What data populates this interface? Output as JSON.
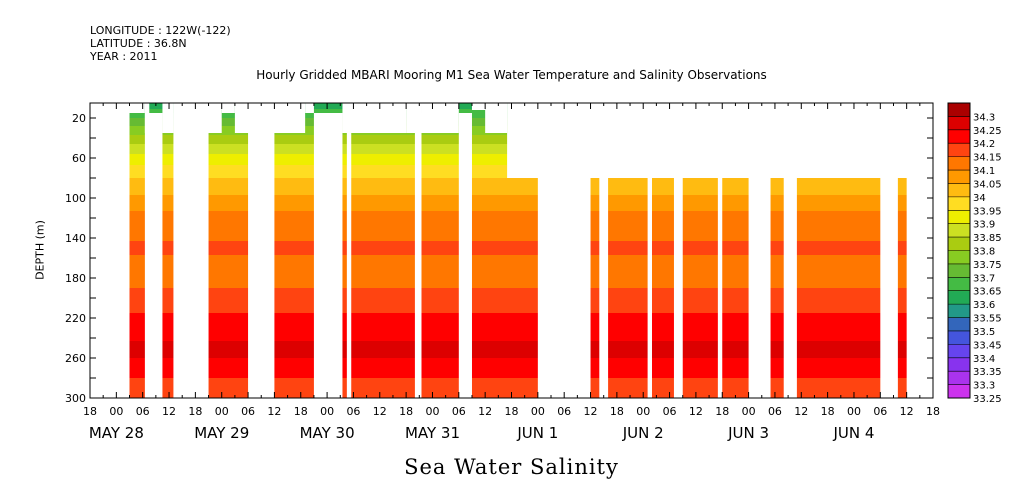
{
  "header": {
    "longitude": "LONGITUDE : 122W(-122)",
    "latitude": "LATITUDE : 36.8N",
    "year": "YEAR : 2011"
  },
  "chart_data": {
    "type": "heatmap",
    "title": "Hourly Gridded MBARI Mooring M1 Sea Water Temperature and Salinity Observations",
    "xlabel": "Sea Water Salinity",
    "ylabel": "DEPTH (m)",
    "x_hour_ticks": [
      "18",
      "00",
      "06",
      "12",
      "18",
      "00",
      "06",
      "12",
      "18",
      "00",
      "06",
      "12",
      "18",
      "00",
      "06",
      "12",
      "18",
      "00",
      "06",
      "12",
      "18",
      "00",
      "06",
      "12",
      "18",
      "00",
      "06",
      "12",
      "18",
      "00",
      "06",
      "12",
      "18"
    ],
    "date_labels": [
      "MAY 28",
      "MAY 29",
      "MAY 30",
      "MAY 31",
      "JUN  1",
      "JUN  2",
      "JUN  3",
      "JUN  4"
    ],
    "x_range_hours": [
      -6,
      186
    ],
    "y_ticks": [
      20,
      60,
      100,
      140,
      180,
      220,
      260,
      300
    ],
    "ylim": [
      300,
      5
    ],
    "colorbar": {
      "levels": [
        33.25,
        33.3,
        33.35,
        33.4,
        33.45,
        33.5,
        33.55,
        33.6,
        33.65,
        33.7,
        33.75,
        33.8,
        33.85,
        33.9,
        33.95,
        34,
        34.05,
        34.1,
        34.15,
        34.2,
        34.25,
        34.3
      ],
      "colors": [
        "#cc33ee",
        "#aa33ee",
        "#8833ee",
        "#6644ee",
        "#4455dd",
        "#3366bb",
        "#229988",
        "#22aa55",
        "#44bb44",
        "#66bb33",
        "#88cc22",
        "#aacc11",
        "#cce022",
        "#eeee00",
        "#ffdd22",
        "#ffbb11",
        "#ff9900",
        "#ff7700",
        "#ff4411",
        "#ff0000",
        "#dd0000",
        "#aa0000"
      ]
    },
    "salinity_profile": [
      {
        "depth": 5,
        "salinity": 33.62
      },
      {
        "depth": 20,
        "salinity": 33.7
      },
      {
        "depth": 40,
        "salinity": 33.82
      },
      {
        "depth": 60,
        "salinity": 33.92
      },
      {
        "depth": 80,
        "salinity": 34.0
      },
      {
        "depth": 100,
        "salinity": 34.06
      },
      {
        "depth": 120,
        "salinity": 34.12
      },
      {
        "depth": 140,
        "salinity": 34.14
      },
      {
        "depth": 150,
        "salinity": 34.17
      },
      {
        "depth": 160,
        "salinity": 34.14
      },
      {
        "depth": 180,
        "salinity": 34.14
      },
      {
        "depth": 200,
        "salinity": 34.16
      },
      {
        "depth": 215,
        "salinity": 34.2
      },
      {
        "depth": 240,
        "salinity": 34.24
      },
      {
        "depth": 250,
        "salinity": 34.27
      },
      {
        "depth": 265,
        "salinity": 34.24
      },
      {
        "depth": 280,
        "salinity": 34.2
      },
      {
        "depth": 300,
        "salinity": 34.19
      }
    ],
    "data_start_hour": 3,
    "missing_intervals": [
      {
        "from_hour": 6.5,
        "to_hour": 10.5,
        "min_depth": 15
      },
      {
        "from_hour": 13,
        "to_hour": 21,
        "min_depth": 15
      },
      {
        "from_hour": 30,
        "to_hour": 36,
        "min_depth": 15
      },
      {
        "from_hour": 45,
        "to_hour": 51.5,
        "min_depth": 15
      },
      {
        "from_hour": 52.5,
        "to_hour": 53.5,
        "min_depth": 15
      },
      {
        "from_hour": 68,
        "to_hour": 69.5,
        "min_depth": 15
      },
      {
        "from_hour": 78,
        "to_hour": 81,
        "min_depth": 15
      },
      {
        "from_hour": 96,
        "to_hour": 108,
        "min_depth": 15
      },
      {
        "from_hour": 110,
        "to_hour": 112,
        "min_depth": 15
      },
      {
        "from_hour": 121,
        "to_hour": 122,
        "min_depth": 15
      },
      {
        "from_hour": 127,
        "to_hour": 129,
        "min_depth": 15
      },
      {
        "from_hour": 137,
        "to_hour": 138,
        "min_depth": 15
      },
      {
        "from_hour": 144,
        "to_hour": 149,
        "min_depth": 15
      },
      {
        "from_hour": 152,
        "to_hour": 155,
        "min_depth": 15
      },
      {
        "from_hour": 174,
        "to_hour": 178,
        "min_depth": 15
      },
      {
        "from_hour": 180,
        "to_hour": 186,
        "min_depth": 15
      }
    ],
    "missing_shallow": [
      {
        "from_hour": 3,
        "to_hour": 6.5,
        "max_depth": 15
      },
      {
        "from_hour": 6.5,
        "to_hour": 7.5,
        "max_depth": 35
      },
      {
        "from_hour": 10.5,
        "to_hour": 13,
        "max_depth": 35
      },
      {
        "from_hour": 13,
        "to_hour": 24,
        "max_depth": 35
      },
      {
        "from_hour": 24,
        "to_hour": 27,
        "max_depth": 15
      },
      {
        "from_hour": 27,
        "to_hour": 43,
        "max_depth": 35
      },
      {
        "from_hour": 43,
        "to_hour": 45,
        "max_depth": 15
      },
      {
        "from_hour": 51.5,
        "to_hour": 66,
        "max_depth": 35
      },
      {
        "from_hour": 66,
        "to_hour": 69.5,
        "max_depth": 35
      },
      {
        "from_hour": 69.5,
        "to_hour": 78,
        "max_depth": 35
      },
      {
        "from_hour": 81,
        "to_hour": 84,
        "max_depth": 12
      },
      {
        "from_hour": 84,
        "to_hour": 89,
        "max_depth": 35
      },
      {
        "from_hour": 89,
        "to_hour": 186,
        "max_depth": 80
      }
    ]
  }
}
